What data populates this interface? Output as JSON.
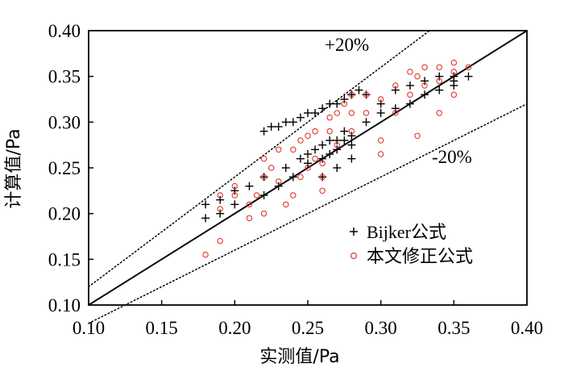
{
  "chart_data": {
    "type": "scatter",
    "title": "",
    "xlabel": "实测值/Pa",
    "ylabel": "计算值/Pa",
    "xlim": [
      0.1,
      0.4
    ],
    "ylim": [
      0.1,
      0.4
    ],
    "xticks": [
      "0.10",
      "0.15",
      "0.20",
      "0.25",
      "0.30",
      "0.35",
      "0.40"
    ],
    "yticks": [
      "0.10",
      "0.15",
      "0.20",
      "0.25",
      "0.30",
      "0.35",
      "0.40"
    ],
    "legend_position": "bottom-right",
    "reference_lines": [
      {
        "name": "1:1",
        "slope": 1.0,
        "style": "solid",
        "color": "#000000"
      },
      {
        "name": "+20%",
        "slope": 1.2,
        "style": "dotted",
        "color": "#000000",
        "label": "+20%"
      },
      {
        "name": "-20%",
        "slope": 0.8,
        "style": "dotted",
        "color": "#000000",
        "label": "-20%"
      }
    ],
    "series": [
      {
        "name": "Bijker公式",
        "marker": "plus",
        "color": "#000000",
        "points": [
          [
            0.18,
            0.195
          ],
          [
            0.18,
            0.21
          ],
          [
            0.19,
            0.215
          ],
          [
            0.19,
            0.2
          ],
          [
            0.2,
            0.21
          ],
          [
            0.2,
            0.225
          ],
          [
            0.21,
            0.23
          ],
          [
            0.22,
            0.22
          ],
          [
            0.22,
            0.24
          ],
          [
            0.22,
            0.29
          ],
          [
            0.225,
            0.295
          ],
          [
            0.23,
            0.295
          ],
          [
            0.235,
            0.3
          ],
          [
            0.24,
            0.3
          ],
          [
            0.245,
            0.305
          ],
          [
            0.25,
            0.31
          ],
          [
            0.255,
            0.31
          ],
          [
            0.26,
            0.315
          ],
          [
            0.265,
            0.32
          ],
          [
            0.27,
            0.32
          ],
          [
            0.275,
            0.325
          ],
          [
            0.28,
            0.33
          ],
          [
            0.285,
            0.335
          ],
          [
            0.23,
            0.23
          ],
          [
            0.235,
            0.25
          ],
          [
            0.24,
            0.24
          ],
          [
            0.245,
            0.26
          ],
          [
            0.25,
            0.255
          ],
          [
            0.25,
            0.265
          ],
          [
            0.255,
            0.27
          ],
          [
            0.26,
            0.26
          ],
          [
            0.26,
            0.275
          ],
          [
            0.265,
            0.265
          ],
          [
            0.265,
            0.28
          ],
          [
            0.27,
            0.27
          ],
          [
            0.27,
            0.28
          ],
          [
            0.275,
            0.28
          ],
          [
            0.275,
            0.29
          ],
          [
            0.28,
            0.275
          ],
          [
            0.28,
            0.285
          ],
          [
            0.26,
            0.24
          ],
          [
            0.27,
            0.25
          ],
          [
            0.28,
            0.26
          ],
          [
            0.29,
            0.3
          ],
          [
            0.3,
            0.31
          ],
          [
            0.31,
            0.315
          ],
          [
            0.32,
            0.32
          ],
          [
            0.33,
            0.33
          ],
          [
            0.34,
            0.335
          ],
          [
            0.35,
            0.34
          ],
          [
            0.35,
            0.345
          ],
          [
            0.35,
            0.35
          ],
          [
            0.36,
            0.35
          ],
          [
            0.3,
            0.32
          ],
          [
            0.32,
            0.34
          ],
          [
            0.33,
            0.345
          ],
          [
            0.34,
            0.35
          ],
          [
            0.28,
            0.33
          ],
          [
            0.29,
            0.33
          ],
          [
            0.31,
            0.335
          ]
        ]
      },
      {
        "name": "本文修正公式",
        "marker": "circle",
        "color": "#e0352b",
        "points": [
          [
            0.18,
            0.155
          ],
          [
            0.19,
            0.17
          ],
          [
            0.19,
            0.205
          ],
          [
            0.19,
            0.22
          ],
          [
            0.2,
            0.22
          ],
          [
            0.2,
            0.23
          ],
          [
            0.21,
            0.195
          ],
          [
            0.21,
            0.21
          ],
          [
            0.215,
            0.22
          ],
          [
            0.22,
            0.24
          ],
          [
            0.22,
            0.26
          ],
          [
            0.225,
            0.25
          ],
          [
            0.23,
            0.235
          ],
          [
            0.23,
            0.27
          ],
          [
            0.24,
            0.22
          ],
          [
            0.24,
            0.27
          ],
          [
            0.245,
            0.28
          ],
          [
            0.25,
            0.25
          ],
          [
            0.25,
            0.285
          ],
          [
            0.255,
            0.29
          ],
          [
            0.26,
            0.24
          ],
          [
            0.26,
            0.225
          ],
          [
            0.26,
            0.255
          ],
          [
            0.265,
            0.29
          ],
          [
            0.265,
            0.305
          ],
          [
            0.27,
            0.275
          ],
          [
            0.27,
            0.31
          ],
          [
            0.275,
            0.32
          ],
          [
            0.28,
            0.29
          ],
          [
            0.28,
            0.31
          ],
          [
            0.28,
            0.33
          ],
          [
            0.29,
            0.31
          ],
          [
            0.29,
            0.33
          ],
          [
            0.3,
            0.28
          ],
          [
            0.3,
            0.325
          ],
          [
            0.31,
            0.31
          ],
          [
            0.31,
            0.34
          ],
          [
            0.32,
            0.33
          ],
          [
            0.32,
            0.355
          ],
          [
            0.325,
            0.35
          ],
          [
            0.33,
            0.34
          ],
          [
            0.33,
            0.36
          ],
          [
            0.34,
            0.31
          ],
          [
            0.34,
            0.345
          ],
          [
            0.34,
            0.36
          ],
          [
            0.35,
            0.33
          ],
          [
            0.35,
            0.355
          ],
          [
            0.35,
            0.365
          ],
          [
            0.36,
            0.36
          ],
          [
            0.3,
            0.265
          ],
          [
            0.325,
            0.285
          ],
          [
            0.235,
            0.21
          ],
          [
            0.22,
            0.2
          ],
          [
            0.245,
            0.24
          ],
          [
            0.255,
            0.26
          ]
        ]
      }
    ]
  }
}
